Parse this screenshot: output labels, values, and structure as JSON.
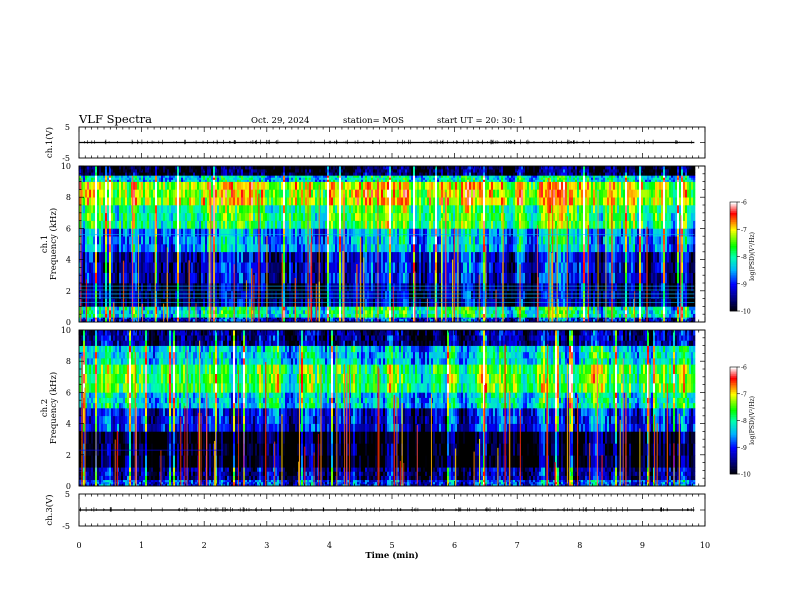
{
  "header": {
    "title": "VLF Spectra",
    "date": "Oct. 29, 2024",
    "station": "station= MOS",
    "start_ut": "start  UT =   20: 30: 1"
  },
  "chart_data": [
    {
      "type": "line",
      "panel": "ch1-waveform",
      "ylabel": "ch.1(V)",
      "ylim": [
        -5,
        5
      ],
      "yticks": [
        "5",
        "-5"
      ],
      "x": [
        0,
        9.83
      ],
      "values": [
        0,
        0
      ]
    },
    {
      "type": "heatmap",
      "panel": "ch1-spectrogram",
      "ylabel": "ch.1  Frequency (kHz)",
      "ylim": [
        0,
        10
      ],
      "yticks": [
        "0",
        "2",
        "4",
        "6",
        "8",
        "10"
      ],
      "xlim": [
        0,
        10
      ],
      "data_end_min": 9.83,
      "colorbar": {
        "label": "log(PSD)(V²/Hz)",
        "range": [
          -10,
          -6
        ],
        "ticks": [
          "-6",
          "-7",
          "-8",
          "-9",
          "-10"
        ]
      },
      "bands": [
        {
          "f": [
            0.0,
            0.3
          ],
          "level": -9.0
        },
        {
          "f": [
            0.3,
            1.0
          ],
          "level": -8.0
        },
        {
          "f": [
            1.0,
            2.5
          ],
          "level": -9.5
        },
        {
          "f": [
            2.5,
            4.5
          ],
          "level": -9.2
        },
        {
          "f": [
            4.5,
            6.0
          ],
          "level": -8.5
        },
        {
          "f": [
            6.0,
            7.5
          ],
          "level": -7.7
        },
        {
          "f": [
            7.5,
            9.0
          ],
          "level": -7.1
        },
        {
          "f": [
            9.0,
            9.4
          ],
          "level": -8.2
        },
        {
          "f": [
            9.4,
            10.0
          ],
          "level": -9.8
        }
      ]
    },
    {
      "type": "heatmap",
      "panel": "ch2-spectrogram",
      "ylabel": "ch.2  Frequency (kHz)",
      "ylim": [
        0,
        10
      ],
      "yticks": [
        "0",
        "2",
        "4",
        "6",
        "8",
        "10"
      ],
      "xlim": [
        0,
        10
      ],
      "data_end_min": 9.83,
      "colorbar": {
        "label": "log(PSD)(V²/Hz)",
        "range": [
          -10,
          -6
        ],
        "ticks": [
          "-6",
          "-7",
          "-8",
          "-9",
          "-10"
        ]
      },
      "bands": [
        {
          "f": [
            0.0,
            0.4
          ],
          "level": -8.8
        },
        {
          "f": [
            0.4,
            1.2
          ],
          "level": -9.4
        },
        {
          "f": [
            1.2,
            3.5
          ],
          "level": -9.9
        },
        {
          "f": [
            3.5,
            5.0
          ],
          "level": -9.0
        },
        {
          "f": [
            5.0,
            6.0
          ],
          "level": -8.2
        },
        {
          "f": [
            6.0,
            7.8
          ],
          "level": -7.6
        },
        {
          "f": [
            7.8,
            9.0
          ],
          "level": -8.2
        },
        {
          "f": [
            9.0,
            10.0
          ],
          "level": -9.4
        }
      ]
    },
    {
      "type": "line",
      "panel": "ch3-waveform",
      "ylabel": "ch.3(V)",
      "ylim": [
        -5,
        5
      ],
      "yticks": [
        "5",
        "-5"
      ],
      "x": [
        0,
        9.83
      ],
      "values": [
        0,
        0
      ]
    }
  ],
  "xaxis": {
    "label": "Time  (min)",
    "range": [
      0,
      10
    ],
    "ticks": [
      "0",
      "1",
      "2",
      "3",
      "4",
      "5",
      "6",
      "7",
      "8",
      "9",
      "10"
    ]
  },
  "colors": {
    "background": "#ffffff",
    "axes": "#000000",
    "colormap": [
      "#000000",
      "#000080",
      "#0000ff",
      "#00b4ff",
      "#00ffb0",
      "#00ff00",
      "#ffff00",
      "#ff0000",
      "#ffffff"
    ]
  }
}
